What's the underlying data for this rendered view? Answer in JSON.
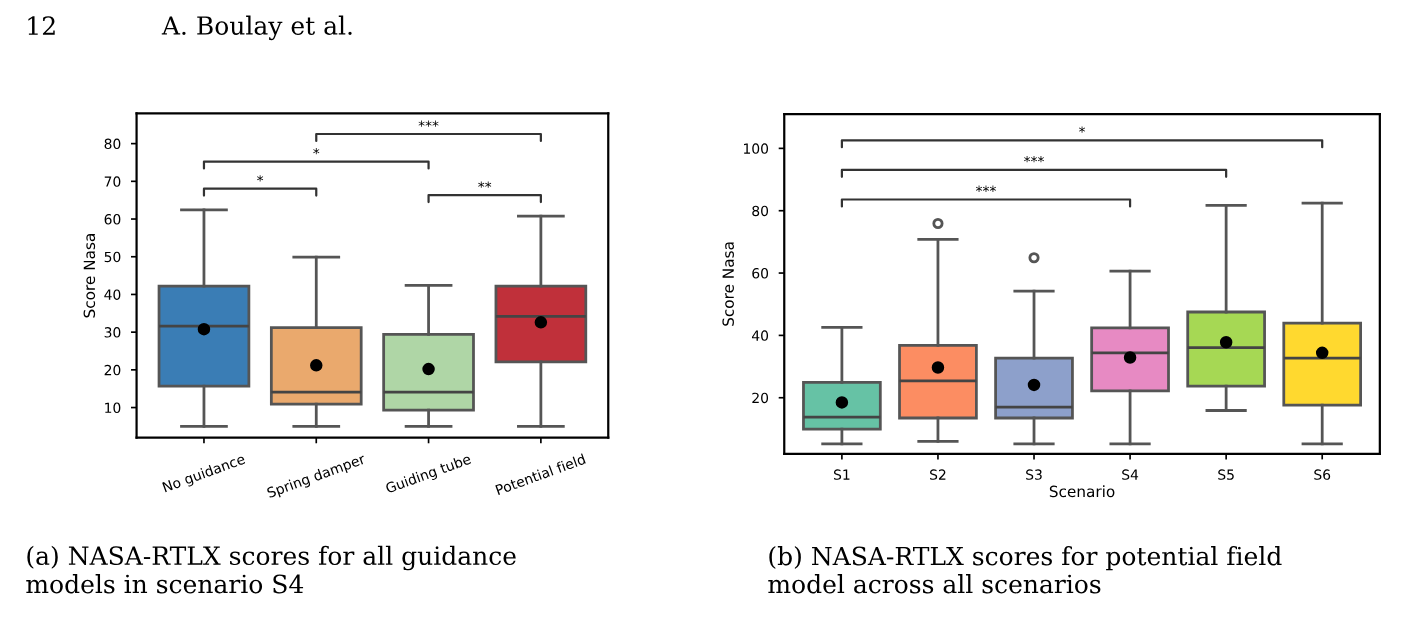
{
  "chart_data": [
    {
      "type": "box",
      "ylabel": "Score Nasa",
      "categories": [
        "No guidance",
        "Spring damper",
        "Guiding tube",
        "Potential field"
      ],
      "colors": [
        "#3a7db5",
        "#eaa96d",
        "#afd6a6",
        "#c0303a"
      ],
      "boxes": [
        {
          "low": 5,
          "q1": 15.7,
          "median": 31.6,
          "q3": 42.2,
          "high": 62.4,
          "mean": 30.8
        },
        {
          "low": 5,
          "q1": 10.9,
          "median": 14.1,
          "q3": 31.2,
          "high": 49.9,
          "mean": 21.2
        },
        {
          "low": 5,
          "q1": 9.3,
          "median": 14.1,
          "q3": 29.4,
          "high": 42.4,
          "mean": 20.2
        },
        {
          "low": 5,
          "q1": 22.1,
          "median": 34.2,
          "q3": 42.2,
          "high": 60.8,
          "mean": 32.6
        }
      ],
      "ylim": [
        2,
        88
      ],
      "yticks": [
        10,
        20,
        30,
        40,
        50,
        60,
        70,
        80
      ],
      "grid": false,
      "legend": false,
      "annotations": [
        "*",
        "*",
        "***",
        "**",
        "12",
        "A. Boulay et al.",
        "(a) NASA-RTLX scores for all guidance\nmodels in scenario S4"
      ]
    },
    {
      "type": "box",
      "xlabel": "Scenario",
      "ylabel": "Score Nasa",
      "categories": [
        "S1",
        "S2",
        "S3",
        "S4",
        "S5",
        "S6"
      ],
      "colors": [
        "#66c2a5",
        "#fc8d62",
        "#8da0cb",
        "#e78ac3",
        "#a6d854",
        "#ffd92f"
      ],
      "boxes": [
        {
          "low": 5.2,
          "q1": 9.9,
          "median": 13.8,
          "q3": 24.9,
          "high": 42.6,
          "mean": 18.5
        },
        {
          "low": 6.0,
          "q1": 13.5,
          "median": 25.4,
          "q3": 36.8,
          "high": 70.8,
          "mean": 29.7,
          "outliers": [
            75.9
          ]
        },
        {
          "low": 5.2,
          "q1": 13.5,
          "median": 17.0,
          "q3": 32.7,
          "high": 54.2,
          "mean": 24.1,
          "outliers": [
            64.9
          ]
        },
        {
          "low": 5.2,
          "q1": 22.2,
          "median": 34.4,
          "q3": 42.4,
          "high": 60.6,
          "mean": 32.9
        },
        {
          "low": 15.9,
          "q1": 23.7,
          "median": 36.1,
          "q3": 47.5,
          "high": 81.7,
          "mean": 37.8
        },
        {
          "low": 5.2,
          "q1": 17.6,
          "median": 32.7,
          "q3": 43.9,
          "high": 82.4,
          "mean": 34.4
        }
      ],
      "ylim": [
        2,
        111
      ],
      "yticks": [
        20,
        40,
        60,
        80,
        100
      ],
      "grid": false,
      "legend": false,
      "annotations": [
        "***",
        "***",
        "*",
        "(b) NASA-RTLX scores for potential field\nmodel across all scenarios"
      ]
    }
  ]
}
